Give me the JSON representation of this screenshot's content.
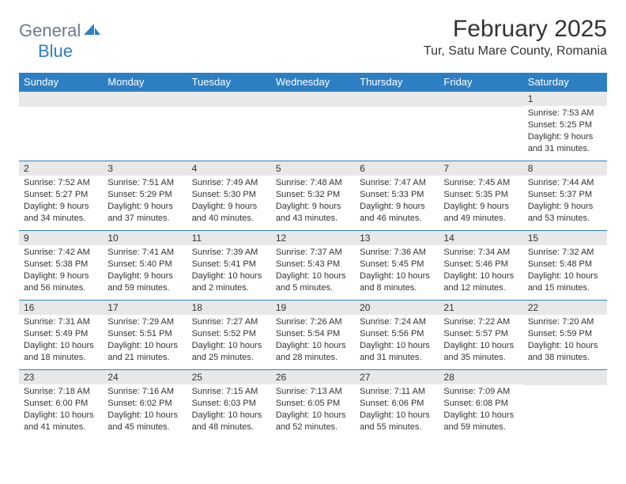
{
  "logo": {
    "general": "General",
    "blue": "Blue"
  },
  "title": "February 2025",
  "location": "Tur, Satu Mare County, Romania",
  "colors": {
    "header_bg": "#2d7fc4",
    "header_text": "#ffffff",
    "daynum_bg": "#e8e8e8",
    "border": "#2d7fc4",
    "text": "#333333",
    "logo_general": "#6b7a8a",
    "logo_blue": "#2d7fc4",
    "background": "#ffffff"
  },
  "weekdays": [
    "Sunday",
    "Monday",
    "Tuesday",
    "Wednesday",
    "Thursday",
    "Friday",
    "Saturday"
  ],
  "weeks": [
    [
      null,
      null,
      null,
      null,
      null,
      null,
      {
        "n": "1",
        "sr": "Sunrise: 7:53 AM",
        "ss": "Sunset: 5:25 PM",
        "d1": "Daylight: 9 hours",
        "d2": "and 31 minutes."
      }
    ],
    [
      {
        "n": "2",
        "sr": "Sunrise: 7:52 AM",
        "ss": "Sunset: 5:27 PM",
        "d1": "Daylight: 9 hours",
        "d2": "and 34 minutes."
      },
      {
        "n": "3",
        "sr": "Sunrise: 7:51 AM",
        "ss": "Sunset: 5:29 PM",
        "d1": "Daylight: 9 hours",
        "d2": "and 37 minutes."
      },
      {
        "n": "4",
        "sr": "Sunrise: 7:49 AM",
        "ss": "Sunset: 5:30 PM",
        "d1": "Daylight: 9 hours",
        "d2": "and 40 minutes."
      },
      {
        "n": "5",
        "sr": "Sunrise: 7:48 AM",
        "ss": "Sunset: 5:32 PM",
        "d1": "Daylight: 9 hours",
        "d2": "and 43 minutes."
      },
      {
        "n": "6",
        "sr": "Sunrise: 7:47 AM",
        "ss": "Sunset: 5:33 PM",
        "d1": "Daylight: 9 hours",
        "d2": "and 46 minutes."
      },
      {
        "n": "7",
        "sr": "Sunrise: 7:45 AM",
        "ss": "Sunset: 5:35 PM",
        "d1": "Daylight: 9 hours",
        "d2": "and 49 minutes."
      },
      {
        "n": "8",
        "sr": "Sunrise: 7:44 AM",
        "ss": "Sunset: 5:37 PM",
        "d1": "Daylight: 9 hours",
        "d2": "and 53 minutes."
      }
    ],
    [
      {
        "n": "9",
        "sr": "Sunrise: 7:42 AM",
        "ss": "Sunset: 5:38 PM",
        "d1": "Daylight: 9 hours",
        "d2": "and 56 minutes."
      },
      {
        "n": "10",
        "sr": "Sunrise: 7:41 AM",
        "ss": "Sunset: 5:40 PM",
        "d1": "Daylight: 9 hours",
        "d2": "and 59 minutes."
      },
      {
        "n": "11",
        "sr": "Sunrise: 7:39 AM",
        "ss": "Sunset: 5:41 PM",
        "d1": "Daylight: 10 hours",
        "d2": "and 2 minutes."
      },
      {
        "n": "12",
        "sr": "Sunrise: 7:37 AM",
        "ss": "Sunset: 5:43 PM",
        "d1": "Daylight: 10 hours",
        "d2": "and 5 minutes."
      },
      {
        "n": "13",
        "sr": "Sunrise: 7:36 AM",
        "ss": "Sunset: 5:45 PM",
        "d1": "Daylight: 10 hours",
        "d2": "and 8 minutes."
      },
      {
        "n": "14",
        "sr": "Sunrise: 7:34 AM",
        "ss": "Sunset: 5:46 PM",
        "d1": "Daylight: 10 hours",
        "d2": "and 12 minutes."
      },
      {
        "n": "15",
        "sr": "Sunrise: 7:32 AM",
        "ss": "Sunset: 5:48 PM",
        "d1": "Daylight: 10 hours",
        "d2": "and 15 minutes."
      }
    ],
    [
      {
        "n": "16",
        "sr": "Sunrise: 7:31 AM",
        "ss": "Sunset: 5:49 PM",
        "d1": "Daylight: 10 hours",
        "d2": "and 18 minutes."
      },
      {
        "n": "17",
        "sr": "Sunrise: 7:29 AM",
        "ss": "Sunset: 5:51 PM",
        "d1": "Daylight: 10 hours",
        "d2": "and 21 minutes."
      },
      {
        "n": "18",
        "sr": "Sunrise: 7:27 AM",
        "ss": "Sunset: 5:52 PM",
        "d1": "Daylight: 10 hours",
        "d2": "and 25 minutes."
      },
      {
        "n": "19",
        "sr": "Sunrise: 7:26 AM",
        "ss": "Sunset: 5:54 PM",
        "d1": "Daylight: 10 hours",
        "d2": "and 28 minutes."
      },
      {
        "n": "20",
        "sr": "Sunrise: 7:24 AM",
        "ss": "Sunset: 5:56 PM",
        "d1": "Daylight: 10 hours",
        "d2": "and 31 minutes."
      },
      {
        "n": "21",
        "sr": "Sunrise: 7:22 AM",
        "ss": "Sunset: 5:57 PM",
        "d1": "Daylight: 10 hours",
        "d2": "and 35 minutes."
      },
      {
        "n": "22",
        "sr": "Sunrise: 7:20 AM",
        "ss": "Sunset: 5:59 PM",
        "d1": "Daylight: 10 hours",
        "d2": "and 38 minutes."
      }
    ],
    [
      {
        "n": "23",
        "sr": "Sunrise: 7:18 AM",
        "ss": "Sunset: 6:00 PM",
        "d1": "Daylight: 10 hours",
        "d2": "and 41 minutes."
      },
      {
        "n": "24",
        "sr": "Sunrise: 7:16 AM",
        "ss": "Sunset: 6:02 PM",
        "d1": "Daylight: 10 hours",
        "d2": "and 45 minutes."
      },
      {
        "n": "25",
        "sr": "Sunrise: 7:15 AM",
        "ss": "Sunset: 6:03 PM",
        "d1": "Daylight: 10 hours",
        "d2": "and 48 minutes."
      },
      {
        "n": "26",
        "sr": "Sunrise: 7:13 AM",
        "ss": "Sunset: 6:05 PM",
        "d1": "Daylight: 10 hours",
        "d2": "and 52 minutes."
      },
      {
        "n": "27",
        "sr": "Sunrise: 7:11 AM",
        "ss": "Sunset: 6:06 PM",
        "d1": "Daylight: 10 hours",
        "d2": "and 55 minutes."
      },
      {
        "n": "28",
        "sr": "Sunrise: 7:09 AM",
        "ss": "Sunset: 6:08 PM",
        "d1": "Daylight: 10 hours",
        "d2": "and 59 minutes."
      },
      null
    ]
  ]
}
